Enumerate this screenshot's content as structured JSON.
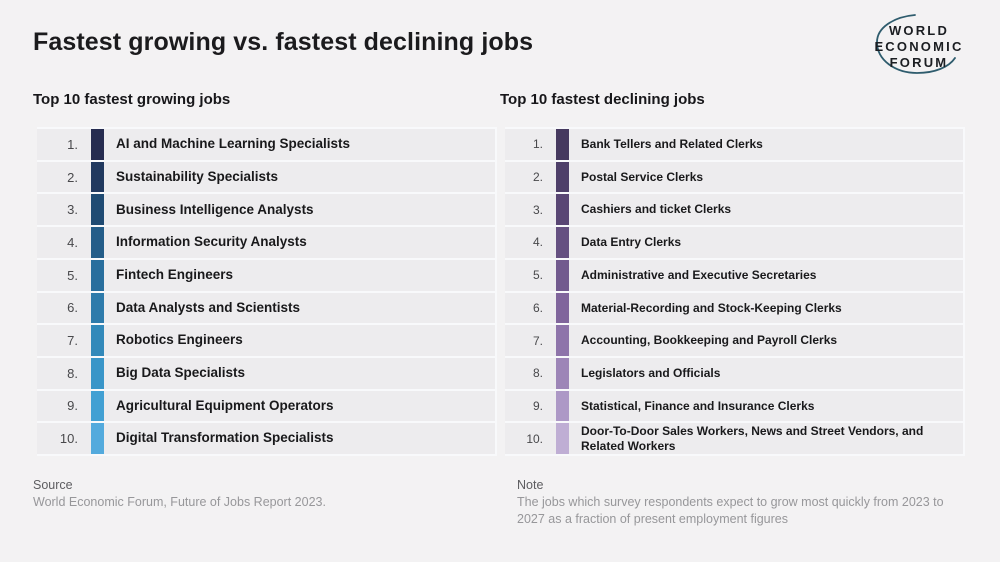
{
  "page": {
    "title": "Fastest growing vs. fastest declining jobs",
    "background": "#f3f2f3"
  },
  "logo": {
    "lines": [
      "WORLD",
      "ECONOMIC",
      "FORUM"
    ],
    "text_color": "#1b1e22",
    "arc_color": "#2e5c6d"
  },
  "growing": {
    "heading": "Top 10 fastest growing jobs",
    "items": [
      {
        "rank": "1.",
        "label": "AI and Machine Learning Specialists",
        "bar_color": "#262c50"
      },
      {
        "rank": "2.",
        "label": "Sustainability Specialists",
        "bar_color": "#21395f"
      },
      {
        "rank": "3.",
        "label": "Business Intelligence Analysts",
        "bar_color": "#1f4b73"
      },
      {
        "rank": "4.",
        "label": "Information Security Analysts",
        "bar_color": "#245d89"
      },
      {
        "rank": "5.",
        "label": "Fintech Engineers",
        "bar_color": "#296e9d"
      },
      {
        "rank": "6.",
        "label": "Data Analysts and Scientists",
        "bar_color": "#2e7bab"
      },
      {
        "rank": "7.",
        "label": "Robotics Engineers",
        "bar_color": "#3289ba"
      },
      {
        "rank": "8.",
        "label": "Big Data Specialists",
        "bar_color": "#3995c8"
      },
      {
        "rank": "9.",
        "label": "Agricultural Equipment Operators",
        "bar_color": "#42a0d3"
      },
      {
        "rank": "10.",
        "label": "Digital Transformation Specialists",
        "bar_color": "#53aadd"
      }
    ]
  },
  "declining": {
    "heading": "Top 10 fastest declining jobs",
    "items": [
      {
        "rank": "1.",
        "label": "Bank Tellers and Related Clerks",
        "bar_color": "#46395f"
      },
      {
        "rank": "2.",
        "label": "Postal Service Clerks",
        "bar_color": "#4e3f69"
      },
      {
        "rank": "3.",
        "label": "Cashiers and ticket Clerks",
        "bar_color": "#594674"
      },
      {
        "rank": "4.",
        "label": "Data Entry Clerks",
        "bar_color": "#655081"
      },
      {
        "rank": "5.",
        "label": "Administrative and Executive Secretaries",
        "bar_color": "#725a8e"
      },
      {
        "rank": "6.",
        "label": "Material-Recording and Stock-Keeping Clerks",
        "bar_color": "#80659c"
      },
      {
        "rank": "7.",
        "label": "Accounting, Bookkeeping and Payroll Clerks",
        "bar_color": "#8e74aa"
      },
      {
        "rank": "8.",
        "label": "Legislators and Officials",
        "bar_color": "#9d85b7"
      },
      {
        "rank": "9.",
        "label": "Statistical, Finance and Insurance Clerks",
        "bar_color": "#ad98c6"
      },
      {
        "rank": "10.",
        "label": "Door-To-Door Sales Workers, News and Street Vendors, and Related Workers",
        "bar_color": "#bfaed4"
      }
    ]
  },
  "source": {
    "label": "Source",
    "text": "World Economic Forum, Future of Jobs Report 2023."
  },
  "note": {
    "label": "Note",
    "text": "The jobs which survey respondents expect to grow most quickly from 2023 to 2027 as a fraction of present employment figures"
  },
  "chart_data": [
    {
      "type": "table",
      "title": "Top 10 fastest growing jobs",
      "categories": [
        "1",
        "2",
        "3",
        "4",
        "5",
        "6",
        "7",
        "8",
        "9",
        "10"
      ],
      "values": [
        "AI and Machine Learning Specialists",
        "Sustainability Specialists",
        "Business Intelligence Analysts",
        "Information Security Analysts",
        "Fintech Engineers",
        "Data Analysts and Scientists",
        "Robotics Engineers",
        "Big Data Specialists",
        "Agricultural Equipment Operators",
        "Digital Transformation Specialists"
      ],
      "legend_position": "none",
      "color_scale": [
        "#262c50",
        "#53aadd"
      ]
    },
    {
      "type": "table",
      "title": "Top 10 fastest declining jobs",
      "categories": [
        "1",
        "2",
        "3",
        "4",
        "5",
        "6",
        "7",
        "8",
        "9",
        "10"
      ],
      "values": [
        "Bank Tellers and Related Clerks",
        "Postal Service Clerks",
        "Cashiers and ticket Clerks",
        "Data Entry Clerks",
        "Administrative and Executive Secretaries",
        "Material-Recording and Stock-Keeping Clerks",
        "Accounting, Bookkeeping and Payroll Clerks",
        "Legislators and Officials",
        "Statistical, Finance and Insurance Clerks",
        "Door-To-Door Sales Workers, News and Street Vendors, and Related Workers"
      ],
      "legend_position": "none",
      "color_scale": [
        "#46395f",
        "#bfaed4"
      ]
    }
  ]
}
